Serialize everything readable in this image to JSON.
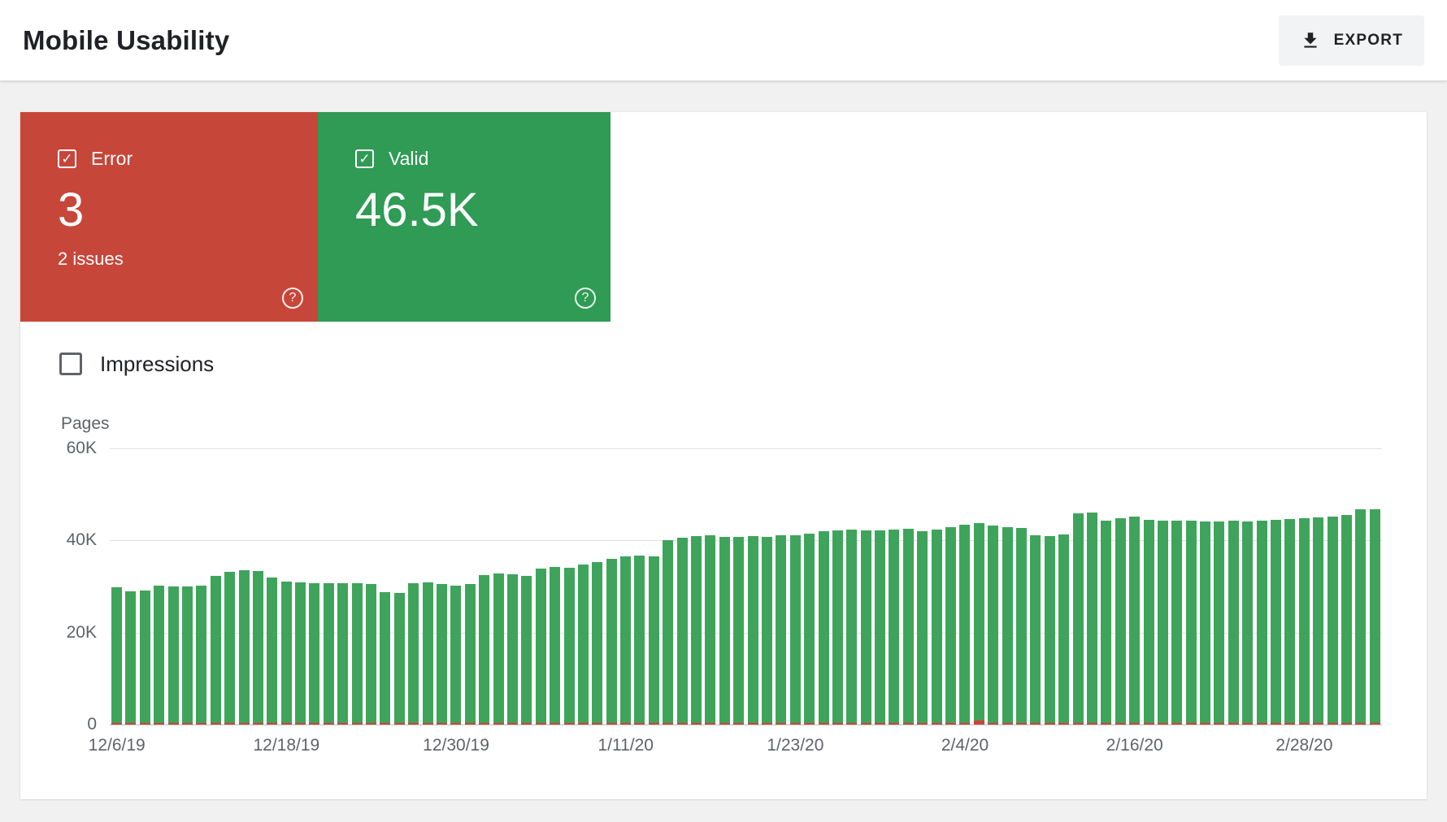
{
  "header": {
    "title": "Mobile Usability",
    "export_button": "EXPORT"
  },
  "icons": {
    "checkbox_check": "✓",
    "help": "?"
  },
  "status_cards": {
    "error": {
      "label": "Error",
      "value": "3",
      "subtext": "2 issues",
      "checked": true,
      "color": "#c7463a"
    },
    "valid": {
      "label": "Valid",
      "value": "46.5K",
      "checked": true,
      "color": "#2f9b54"
    }
  },
  "controls": {
    "impressions": {
      "label": "Impressions",
      "checked": false
    }
  },
  "chart_data": {
    "type": "bar",
    "title": "",
    "xlabel": "",
    "ylabel": "Pages",
    "ylim": [
      0,
      60000
    ],
    "grid": true,
    "legend_position": "none",
    "y_ticks": [
      "60K",
      "40K",
      "20K",
      "0"
    ],
    "x_tick_labels": [
      "12/6/19",
      "12/18/19",
      "12/30/19",
      "1/11/20",
      "1/23/20",
      "2/4/20",
      "2/16/20",
      "2/28/20"
    ],
    "x_tick_positions": [
      0,
      12,
      24,
      36,
      48,
      60,
      72,
      84
    ],
    "dates": [
      "12/6/19",
      "12/7/19",
      "12/8/19",
      "12/9/19",
      "12/10/19",
      "12/11/19",
      "12/12/19",
      "12/13/19",
      "12/14/19",
      "12/15/19",
      "12/16/19",
      "12/17/19",
      "12/18/19",
      "12/19/19",
      "12/20/19",
      "12/21/19",
      "12/22/19",
      "12/23/19",
      "12/24/19",
      "12/25/19",
      "12/26/19",
      "12/27/19",
      "12/28/19",
      "12/29/19",
      "12/30/19",
      "12/31/19",
      "1/1/20",
      "1/2/20",
      "1/3/20",
      "1/4/20",
      "1/5/20",
      "1/6/20",
      "1/7/20",
      "1/8/20",
      "1/9/20",
      "1/10/20",
      "1/11/20",
      "1/12/20",
      "1/13/20",
      "1/14/20",
      "1/15/20",
      "1/16/20",
      "1/17/20",
      "1/18/20",
      "1/19/20",
      "1/20/20",
      "1/21/20",
      "1/22/20",
      "1/23/20",
      "1/24/20",
      "1/25/20",
      "1/26/20",
      "1/27/20",
      "1/28/20",
      "1/29/20",
      "1/30/20",
      "1/31/20",
      "2/1/20",
      "2/2/20",
      "2/3/20",
      "2/4/20",
      "2/5/20",
      "2/6/20",
      "2/7/20",
      "2/8/20",
      "2/9/20",
      "2/10/20",
      "2/11/20",
      "2/12/20",
      "2/13/20",
      "2/14/20",
      "2/15/20",
      "2/16/20",
      "2/17/20",
      "2/18/20",
      "2/19/20",
      "2/20/20",
      "2/21/20",
      "2/22/20",
      "2/23/20",
      "2/24/20",
      "2/25/20",
      "2/26/20",
      "2/27/20",
      "2/28/20",
      "2/29/20",
      "3/1/20",
      "3/2/20",
      "3/3/20",
      "3/4/20"
    ],
    "series": [
      {
        "name": "Valid",
        "color": "#3fa45b",
        "values": [
          29400,
          28600,
          28800,
          29800,
          29600,
          29700,
          29900,
          31900,
          32900,
          33200,
          33000,
          31600,
          30800,
          30500,
          30400,
          30300,
          30400,
          30300,
          30200,
          28500,
          28200,
          30400,
          30600,
          30100,
          29900,
          30200,
          32100,
          32400,
          32300,
          32000,
          33600,
          33900,
          33800,
          34400,
          35000,
          35700,
          36100,
          36300,
          36200,
          39800,
          40300,
          40600,
          40800,
          40500,
          40400,
          40600,
          40500,
          40700,
          40800,
          41200,
          41600,
          41900,
          42000,
          41800,
          41900,
          42000,
          42100,
          41600,
          42000,
          42600,
          43000,
          42800,
          42900,
          42500,
          42400,
          40800,
          40600,
          41000,
          45600,
          45800,
          44000,
          44400,
          44800,
          44200,
          43900,
          44000,
          43900,
          43800,
          43700,
          43900,
          43800,
          44000,
          44100,
          44300,
          44400,
          44600,
          44900,
          45100,
          46400,
          46500
        ]
      },
      {
        "name": "Error",
        "color": "#c7463a",
        "values": [
          3,
          3,
          3,
          3,
          3,
          3,
          3,
          3,
          3,
          3,
          3,
          3,
          3,
          3,
          3,
          3,
          3,
          3,
          3,
          3,
          3,
          3,
          3,
          3,
          3,
          3,
          3,
          3,
          3,
          3,
          3,
          3,
          3,
          3,
          3,
          3,
          3,
          3,
          3,
          3,
          3,
          3,
          3,
          3,
          3,
          3,
          3,
          3,
          3,
          3,
          3,
          3,
          3,
          3,
          3,
          3,
          3,
          3,
          3,
          3,
          3,
          900,
          3,
          3,
          3,
          3,
          3,
          3,
          3,
          3,
          3,
          3,
          3,
          3,
          3,
          3,
          3,
          3,
          3,
          3,
          3,
          3,
          3,
          3,
          3,
          3,
          3,
          3,
          3,
          3
        ]
      }
    ]
  }
}
